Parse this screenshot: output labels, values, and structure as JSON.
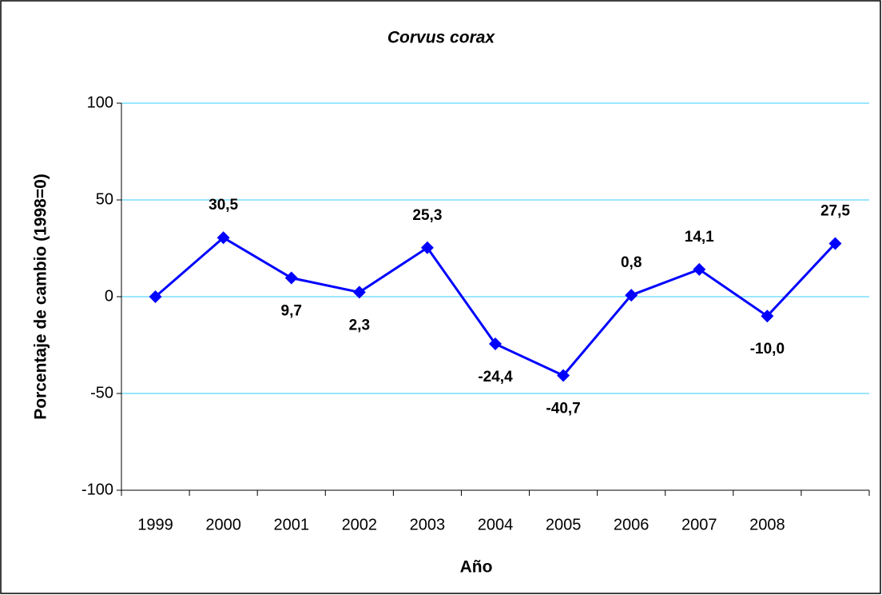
{
  "chart_data": {
    "type": "line",
    "title": "Corvus corax",
    "x_label": "Año",
    "y_label": "Porcentaje de cambio (1998=0)",
    "categories": [
      "1999",
      "2000",
      "2001",
      "2002",
      "2003",
      "2004",
      "2005",
      "2006",
      "2007",
      "2008",
      null
    ],
    "series": [
      {
        "name": "Corvus corax",
        "color": "#0000ff",
        "values": [
          0,
          30.5,
          9.7,
          2.3,
          25.3,
          -24.4,
          -40.7,
          0.8,
          14.1,
          -10.0,
          27.5
        ],
        "value_labels": [
          null,
          "30,5",
          "9,7",
          "2,3",
          "25,3",
          "-24,4",
          "-40,7",
          "0,8",
          "14,1",
          "-10,0",
          "27,5"
        ]
      }
    ],
    "ylim": [
      -100,
      100
    ],
    "yticks": [
      -100,
      -50,
      0,
      50,
      100
    ],
    "grid": true,
    "grid_color": "#33ccff"
  }
}
